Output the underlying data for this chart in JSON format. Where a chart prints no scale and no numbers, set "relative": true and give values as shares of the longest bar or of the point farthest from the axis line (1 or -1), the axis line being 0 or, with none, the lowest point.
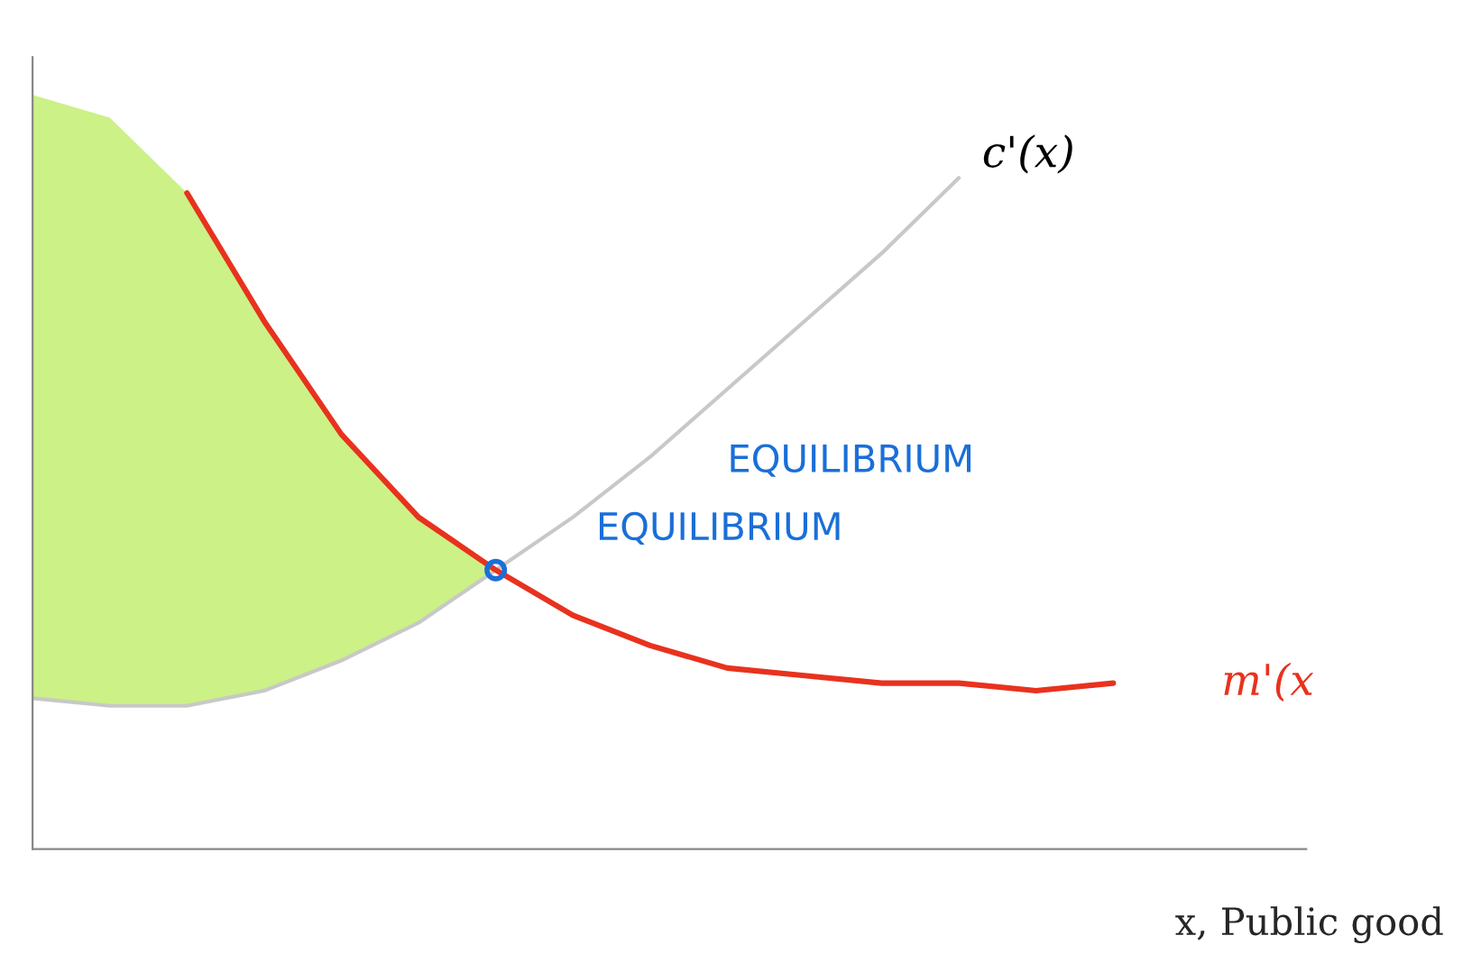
{
  "chart_data": {
    "type": "line",
    "relative": true,
    "xlabel": "x, Public good",
    "legend": false,
    "grid": false,
    "categories": [
      null,
      null,
      null,
      null,
      null,
      null,
      null,
      null,
      null,
      null,
      null,
      null,
      null,
      null,
      null,
      null,
      null
    ],
    "series": [
      {
        "type": "area",
        "color": "#c6f07a",
        "values": [
          1.0,
          0.97,
          0.87,
          0.7,
          0.55,
          0.44,
          0.37,
          null,
          null,
          null,
          null,
          null,
          null,
          null,
          null,
          null,
          null
        ]
      },
      {
        "name": "c'(x)",
        "color": "#c8c8c8",
        "values": [
          0.2,
          0.19,
          0.19,
          0.21,
          0.25,
          0.3,
          0.37,
          0.44,
          0.52,
          0.61,
          0.7,
          0.79,
          0.89,
          null,
          null,
          null,
          null
        ]
      },
      {
        "name": "m'(x",
        "color": "#e8321e",
        "values": [
          null,
          null,
          0.87,
          0.7,
          0.55,
          0.44,
          0.37,
          0.31,
          0.27,
          0.24,
          0.23,
          0.22,
          0.22,
          0.21,
          0.22,
          null,
          null
        ]
      }
    ],
    "annotations": [
      "EQUILIBRIUM",
      "EQUILIBRIUM"
    ]
  }
}
